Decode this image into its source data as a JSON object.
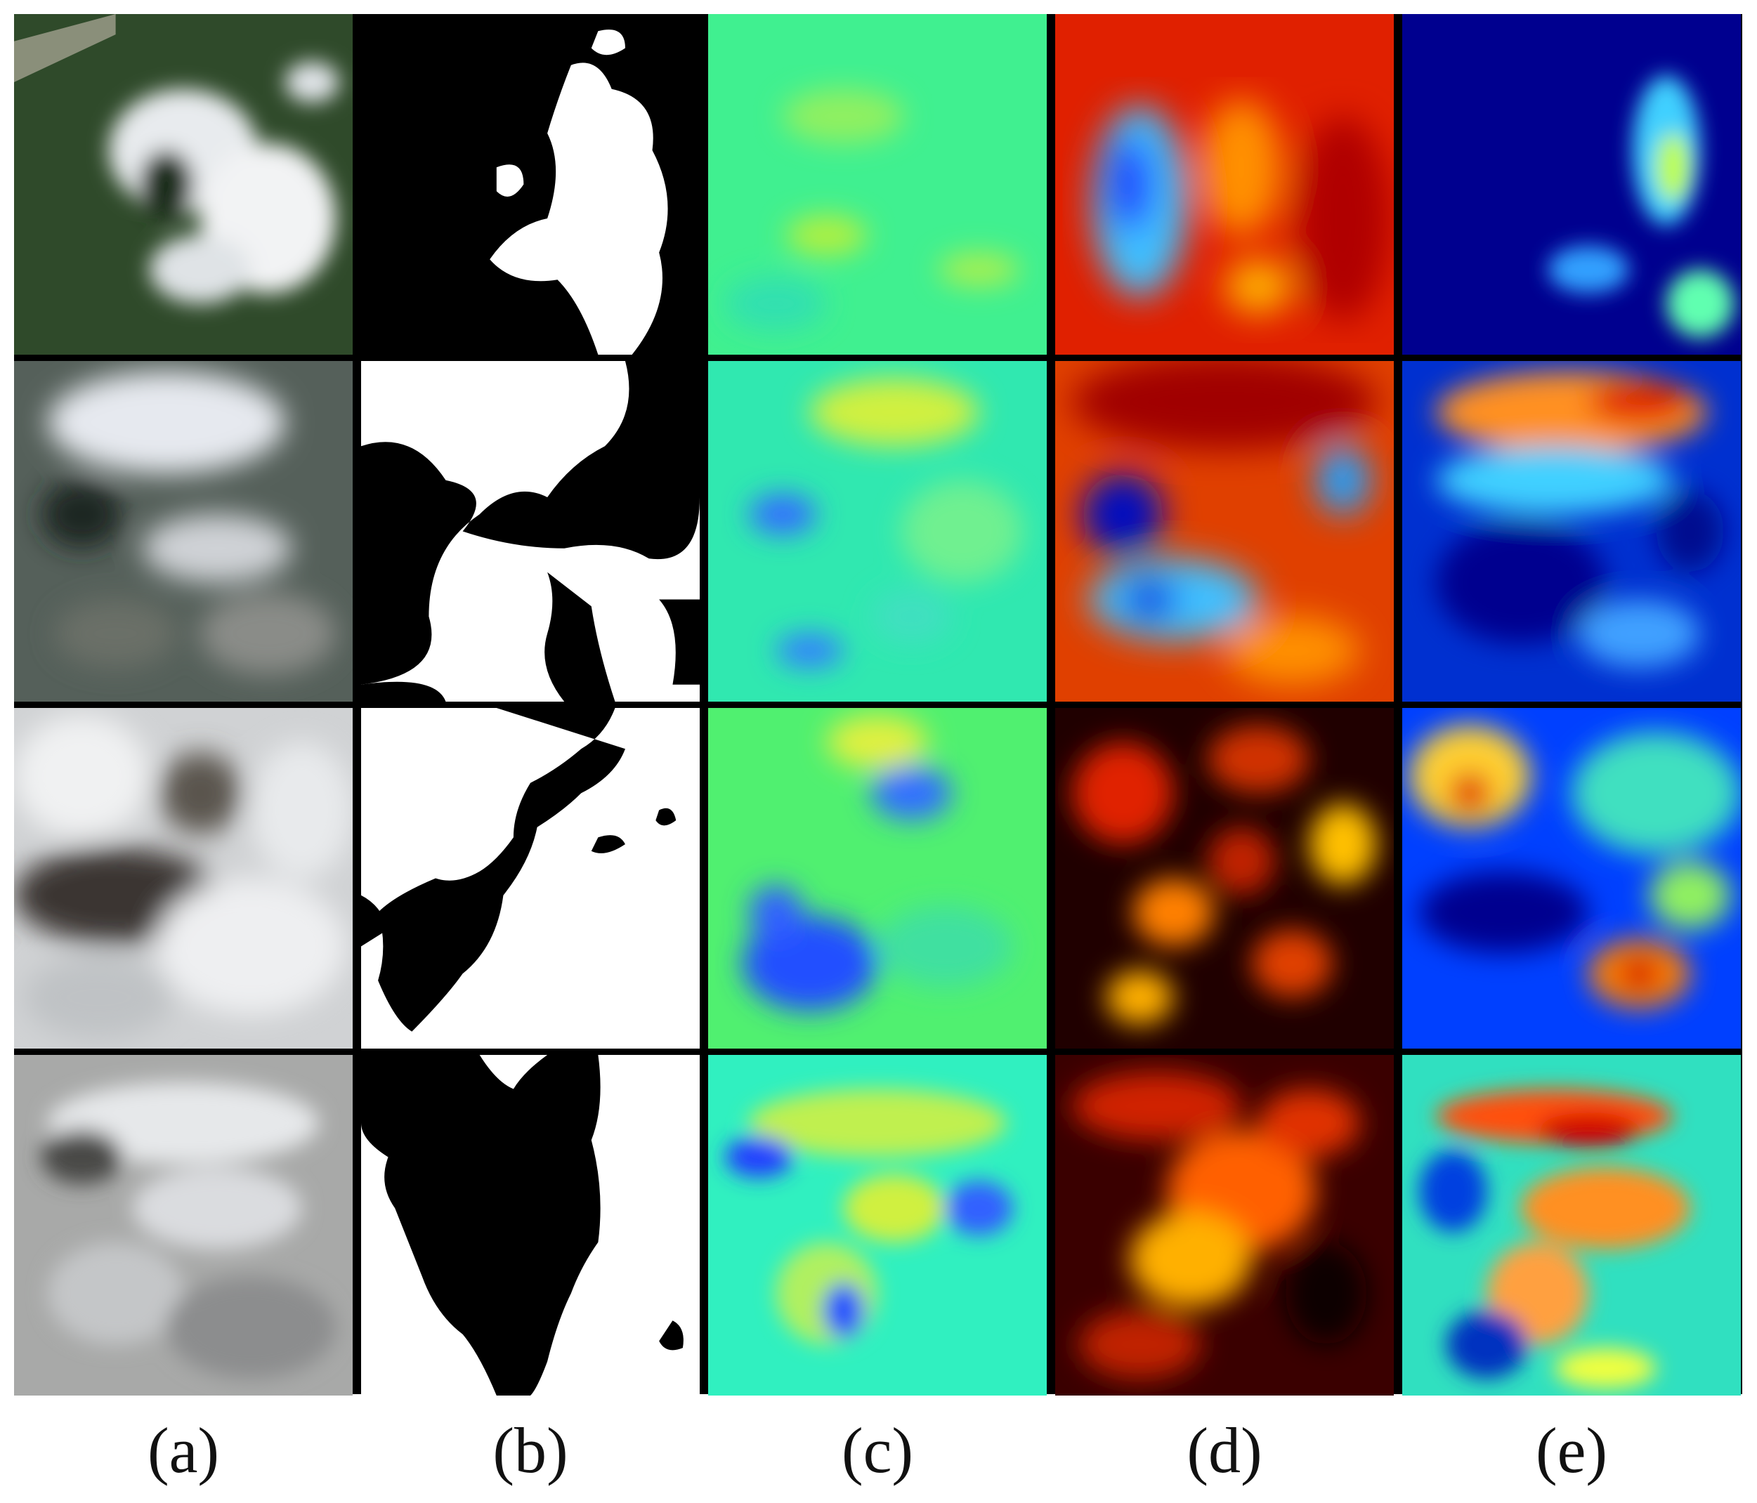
{
  "figure": {
    "columns": [
      {
        "key": "a",
        "label": "(a)",
        "content": "satellite-rgb"
      },
      {
        "key": "b",
        "label": "(b)",
        "content": "binary-cloud-mask"
      },
      {
        "key": "c",
        "label": "(c)",
        "content": "jet-heatmap-green"
      },
      {
        "key": "d",
        "label": "(d)",
        "content": "heatmap-red-blue / hot"
      },
      {
        "key": "e",
        "label": "(e)",
        "content": "jet-heatmap-blue"
      }
    ],
    "rows": 4,
    "colors": {
      "jet_dark_blue": "#00008f",
      "jet_blue": "#0040ff",
      "jet_cyan": "#00ffff",
      "jet_green": "#40ff80",
      "jet_yellow": "#ffff00",
      "jet_orange": "#ff8000",
      "jet_red": "#d40000",
      "hot_black": "#000000",
      "mask_white": "#ffffff",
      "mask_black": "#000000"
    }
  }
}
